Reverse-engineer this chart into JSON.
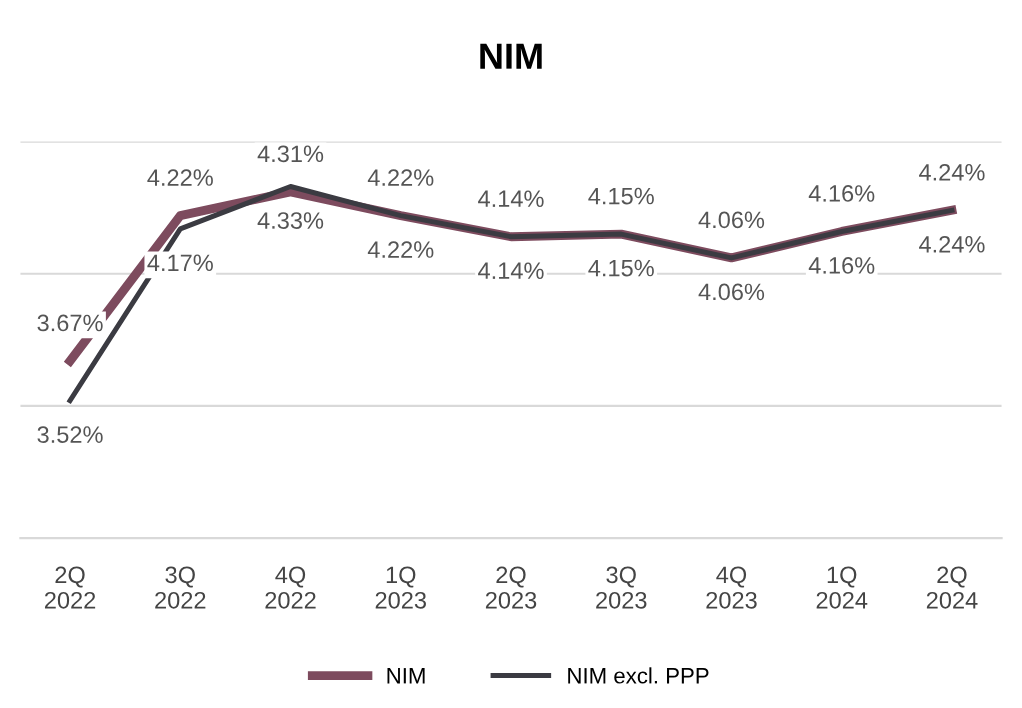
{
  "chart_data": {
    "type": "line",
    "title": "NIM",
    "categories": [
      "2Q\n2022",
      "3Q\n2022",
      "4Q\n2022",
      "1Q\n2023",
      "2Q\n2023",
      "3Q\n2023",
      "4Q\n2023",
      "1Q\n2024",
      "2Q\n2024"
    ],
    "series": [
      {
        "name": "NIM",
        "color": "#7d4b5e",
        "values": [
          3.67,
          4.22,
          4.31,
          4.22,
          4.14,
          4.15,
          4.06,
          4.16,
          4.24
        ],
        "value_labels": [
          "3.67%",
          "4.22%",
          "4.31%",
          "4.22%",
          "4.14%",
          "4.15%",
          "4.06%",
          "4.16%",
          "4.24%"
        ]
      },
      {
        "name": "NIM excl. PPP",
        "color": "#3b3b42",
        "values": [
          3.52,
          4.17,
          4.33,
          4.22,
          4.14,
          4.15,
          4.06,
          4.16,
          4.24
        ],
        "value_labels": [
          "3.52%",
          "4.17%",
          "4.33%",
          "4.22%",
          "4.14%",
          "4.15%",
          "4.06%",
          "4.16%",
          "4.24%"
        ]
      }
    ],
    "ylim": [
      3.0,
      4.5
    ],
    "yticks": [
      {
        "value": 3.0,
        "label": null
      },
      {
        "value": 3.5,
        "label": null
      },
      {
        "value": 4.0,
        "label": null
      },
      {
        "value": 4.5,
        "label": null
      }
    ],
    "grid": "y",
    "legend": "bottom",
    "tick_labels": "x",
    "marker": "none",
    "line_style": "solid"
  }
}
